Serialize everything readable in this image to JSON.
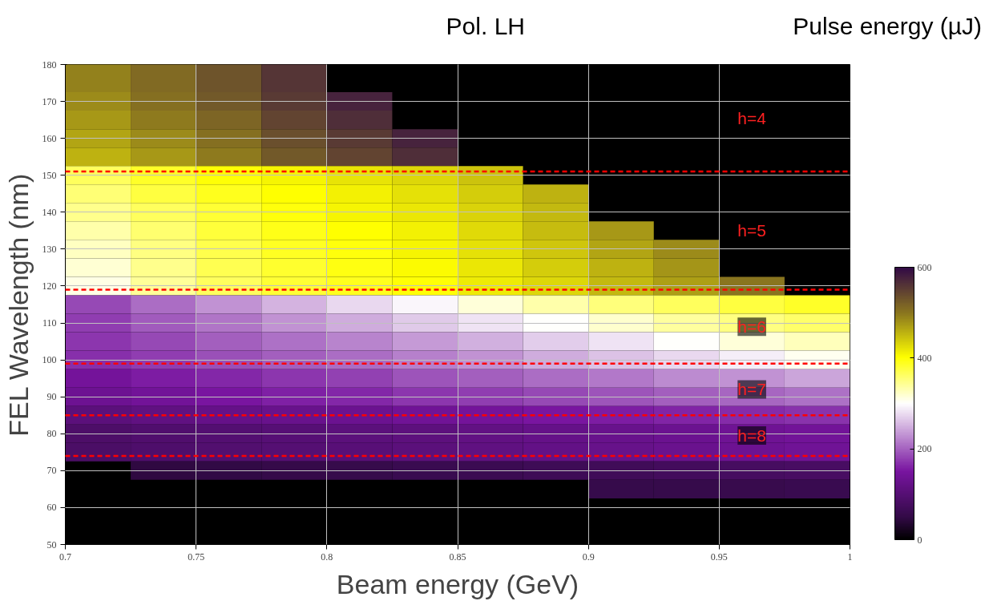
{
  "chart_data": {
    "type": "heatmap",
    "title": "Pol. LH",
    "xlabel": "Beam energy (GeV)",
    "ylabel": "FEL Wavelength (nm)",
    "clabel": "Pulse energy (µJ)",
    "xlim": [
      0.7,
      1
    ],
    "ylim": [
      50,
      180
    ],
    "xticks": [
      0.7,
      0.75,
      0.8,
      0.85,
      0.9,
      0.95,
      1
    ],
    "yticks": [
      50,
      60,
      70,
      80,
      90,
      100,
      110,
      120,
      130,
      140,
      150,
      160,
      170,
      180
    ],
    "clim": [
      0,
      600
    ],
    "cticks": [
      0,
      200,
      400,
      600
    ],
    "grid": true,
    "x": [
      0.7125,
      0.7375,
      0.7625,
      0.7875,
      0.8125,
      0.8375,
      0.8625,
      0.8875,
      0.9125,
      0.9375,
      0.9625,
      0.9875
    ],
    "y": [
      180,
      175,
      170,
      165,
      160,
      155,
      150,
      145,
      140,
      135,
      130,
      125,
      120,
      115,
      110,
      105,
      100,
      95,
      90,
      85,
      80,
      75,
      70,
      65
    ],
    "cells": [
      [
        490,
        510,
        530,
        560,
        null,
        null,
        null,
        null,
        null,
        null,
        null,
        null
      ],
      [
        490,
        510,
        530,
        560,
        null,
        null,
        null,
        null,
        null,
        null,
        null,
        null
      ],
      [
        485,
        505,
        525,
        555,
        575,
        null,
        null,
        null,
        null,
        null,
        null,
        null
      ],
      [
        475,
        495,
        515,
        545,
        565,
        null,
        null,
        null,
        null,
        null,
        null,
        null
      ],
      [
        465,
        485,
        505,
        535,
        555,
        575,
        null,
        null,
        null,
        null,
        null,
        null
      ],
      [
        455,
        475,
        495,
        525,
        545,
        565,
        null,
        null,
        null,
        null,
        null,
        null
      ],
      [
        365,
        385,
        400,
        410,
        420,
        430,
        445,
        null,
        null,
        null,
        null,
        null
      ],
      [
        355,
        375,
        390,
        402,
        412,
        422,
        438,
        455,
        null,
        null,
        null,
        null
      ],
      [
        345,
        365,
        382,
        398,
        408,
        418,
        432,
        452,
        null,
        null,
        null,
        null
      ],
      [
        335,
        358,
        378,
        392,
        402,
        412,
        428,
        448,
        475,
        null,
        null,
        null
      ],
      [
        325,
        350,
        372,
        388,
        398,
        408,
        422,
        442,
        465,
        485,
        null,
        null
      ],
      [
        318,
        345,
        368,
        384,
        394,
        404,
        418,
        436,
        456,
        478,
        null,
        null
      ],
      [
        310,
        340,
        365,
        380,
        390,
        400,
        415,
        430,
        450,
        470,
        500,
        null
      ],
      [
        185,
        208,
        230,
        252,
        275,
        295,
        315,
        335,
        352,
        365,
        375,
        385
      ],
      [
        178,
        195,
        212,
        230,
        248,
        265,
        282,
        302,
        320,
        338,
        350,
        360
      ],
      [
        172,
        185,
        198,
        210,
        222,
        235,
        250,
        268,
        282,
        300,
        315,
        328
      ],
      [
        168,
        178,
        188,
        198,
        208,
        218,
        232,
        248,
        262,
        276,
        290,
        305
      ],
      [
        145,
        155,
        162,
        172,
        180,
        190,
        198,
        208,
        215,
        225,
        232,
        242
      ],
      [
        135,
        142,
        150,
        158,
        162,
        172,
        178,
        185,
        190,
        198,
        202,
        210
      ],
      [
        110,
        115,
        122,
        128,
        133,
        140,
        145,
        150,
        155,
        160,
        165,
        170
      ],
      [
        88,
        92,
        98,
        102,
        108,
        112,
        118,
        122,
        128,
        132,
        138,
        142
      ],
      [
        85,
        90,
        95,
        100,
        105,
        110,
        115,
        120,
        125,
        130,
        135,
        140
      ],
      [
        null,
        45,
        48,
        52,
        55,
        60,
        62,
        66,
        70,
        74,
        78,
        82
      ],
      [
        null,
        null,
        null,
        null,
        null,
        null,
        null,
        null,
        54,
        56,
        58,
        60
      ]
    ],
    "ref_lines": [
      {
        "axis": "y",
        "value": 151,
        "color": "#ff0000",
        "line_style": "dashed"
      },
      {
        "axis": "y",
        "value": 119,
        "color": "#ff0000",
        "line_style": "dashed"
      },
      {
        "axis": "y",
        "value": 99,
        "color": "#ff0000",
        "line_style": "dashed"
      },
      {
        "axis": "y",
        "value": 85,
        "color": "#ff0000",
        "line_style": "dashed"
      },
      {
        "axis": "y",
        "value": 74,
        "color": "#ff0000",
        "line_style": "dashed"
      }
    ],
    "annotations": [
      "h=4",
      "h=5",
      "h=6",
      "h=7",
      "h=8"
    ]
  }
}
